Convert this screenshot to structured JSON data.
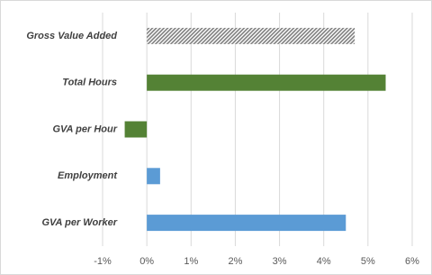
{
  "chart_data": {
    "type": "bar",
    "orientation": "horizontal",
    "categories": [
      "Gross Value Added",
      "Total Hours",
      "GVA per Hour",
      "Employment",
      "GVA per Worker"
    ],
    "values": [
      4.7,
      5.4,
      -0.5,
      0.3,
      4.5
    ],
    "colors": [
      "#7f7f7f",
      "#548235",
      "#548235",
      "#5b9bd5",
      "#5b9bd5"
    ],
    "hatched": [
      true,
      false,
      false,
      false,
      false
    ],
    "xlim": [
      -1,
      6
    ],
    "xticks": [
      {
        "value": -1,
        "label": "-1%"
      },
      {
        "value": 0,
        "label": "0%"
      },
      {
        "value": 1,
        "label": "1%"
      },
      {
        "value": 2,
        "label": "2%"
      },
      {
        "value": 3,
        "label": "3%"
      },
      {
        "value": 4,
        "label": "4%"
      },
      {
        "value": 5,
        "label": "5%"
      },
      {
        "value": 6,
        "label": "6%"
      }
    ],
    "grid": true
  }
}
